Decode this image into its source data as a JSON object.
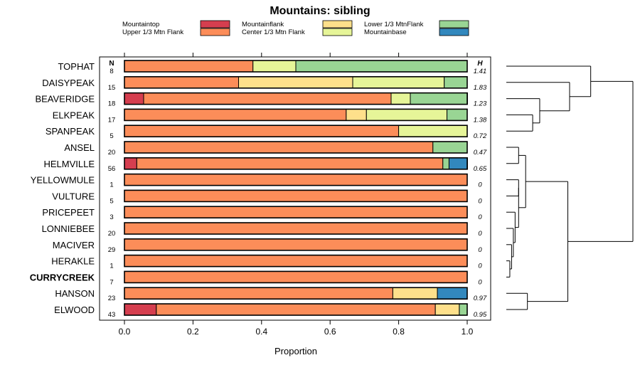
{
  "chart_data": {
    "type": "bar",
    "orientation": "horizontal",
    "stacked": true,
    "title": "Mountains: sibling",
    "xlabel": "Proportion",
    "ylabel": "",
    "xlim": [
      0,
      1
    ],
    "xticks": [
      "0.0",
      "0.2",
      "0.4",
      "0.6",
      "0.8",
      "1.0"
    ],
    "n_header": "N",
    "h_header": "H",
    "legend": [
      {
        "name": "Mountaintop",
        "color": "#d53e4f"
      },
      {
        "name": "Upper 1/3 Mtn Flank",
        "color": "#fc8d59"
      },
      {
        "name": "Mountainflank",
        "color": "#fee08b"
      },
      {
        "name": "Center 1/3 Mtn Flank",
        "color": "#e6f598"
      },
      {
        "name": "Lower 1/3 MtnFlank",
        "color": "#99d594"
      },
      {
        "name": "Mountainbase",
        "color": "#3288bd"
      }
    ],
    "highlight_category": "CURRYCREEK",
    "categories": [
      "TOPHAT",
      "DAISYPEAK",
      "BEAVERIDGE",
      "ELKPEAK",
      "SPANPEAK",
      "ANSEL",
      "HELMVILLE",
      "YELLOWMULE",
      "VULTURE",
      "PRICEPEET",
      "LONNIEBEE",
      "MACIVER",
      "HERAKLE",
      "CURRYCREEK",
      "HANSON",
      "ELWOOD"
    ],
    "n": [
      "8",
      "15",
      "18",
      "17",
      "5",
      "20",
      "56",
      "1",
      "5",
      "3",
      "20",
      "29",
      "1",
      "7",
      "23",
      "43"
    ],
    "h": [
      "1.41",
      "1.83",
      "1.23",
      "1.38",
      "0.72",
      "0.47",
      "0.65",
      "0",
      "0",
      "0",
      "0",
      "0",
      "0",
      "0",
      "0.97",
      "0.95"
    ],
    "series": [
      {
        "name": "Mountaintop",
        "values": [
          0,
          0,
          0.056,
          0,
          0,
          0,
          0.036,
          0,
          0,
          0,
          0,
          0,
          0,
          0,
          0,
          0.093
        ]
      },
      {
        "name": "Upper 1/3 Mtn Flank",
        "values": [
          0.375,
          0.333,
          0.722,
          0.647,
          0.8,
          0.9,
          0.893,
          1,
          1,
          1,
          1,
          1,
          1,
          1,
          0.783,
          0.814
        ]
      },
      {
        "name": "Mountainflank",
        "values": [
          0,
          0.333,
          0,
          0.059,
          0,
          0,
          0,
          0,
          0,
          0,
          0,
          0,
          0,
          0,
          0.13,
          0.07
        ]
      },
      {
        "name": "Center 1/3 Mtn Flank",
        "values": [
          0.125,
          0.267,
          0.056,
          0.235,
          0.2,
          0,
          0,
          0,
          0,
          0,
          0,
          0,
          0,
          0,
          0,
          0
        ]
      },
      {
        "name": "Lower 1/3 MtnFlank",
        "values": [
          0.5,
          0.067,
          0.167,
          0.059,
          0,
          0.1,
          0.018,
          0,
          0,
          0,
          0,
          0,
          0,
          0,
          0,
          0.023
        ]
      },
      {
        "name": "Mountainbase",
        "values": [
          0,
          0,
          0,
          0,
          0,
          0,
          0.054,
          0,
          0,
          0,
          0,
          0,
          0,
          0,
          0.087,
          0
        ]
      }
    ],
    "dendrogram": {
      "leaf_order": [
        "TOPHAT",
        "DAISYPEAK",
        "BEAVERIDGE",
        "ELKPEAK",
        "SPANPEAK",
        "ANSEL",
        "HELMVILLE",
        "YELLOWMULE",
        "VULTURE",
        "PRICEPEET",
        "LONNIEBEE",
        "MACIVER",
        "HERAKLE",
        "CURRYCREEK",
        "HANSON",
        "ELWOOD"
      ],
      "merges": [
        {
          "a": "HERAKLE",
          "b": "CURRYCREEK",
          "height": 0.02
        },
        {
          "a": "MACIVER",
          "b": "c1",
          "height": 0.03
        },
        {
          "a": "LONNIEBEE",
          "b": "c2",
          "height": 0.04
        },
        {
          "a": "PRICEPEET",
          "b": "c3",
          "height": 0.05
        },
        {
          "a": "YELLOWMULE",
          "b": "VULTURE",
          "height": 0.07
        },
        {
          "a": "c5",
          "b": "c4",
          "height": 0.07
        },
        {
          "a": "ANSEL",
          "b": "HELMVILLE",
          "height": 0.07
        },
        {
          "a": "c7",
          "b": "c6",
          "height": 0.11
        },
        {
          "a": "HANSON",
          "b": "ELWOOD",
          "height": 0.12
        },
        {
          "a": "c8",
          "b": "c9",
          "height": 0.35
        },
        {
          "a": "ELKPEAK",
          "b": "SPANPEAK",
          "height": 0.15
        },
        {
          "a": "BEAVERIDGE",
          "b": "c11",
          "height": 0.19
        },
        {
          "a": "DAISYPEAK",
          "b": "c12",
          "height": 0.36
        },
        {
          "a": "TOPHAT",
          "b": "c13",
          "height": 0.48
        },
        {
          "a": "c14",
          "b": "c10",
          "height": 0.72
        }
      ]
    }
  }
}
